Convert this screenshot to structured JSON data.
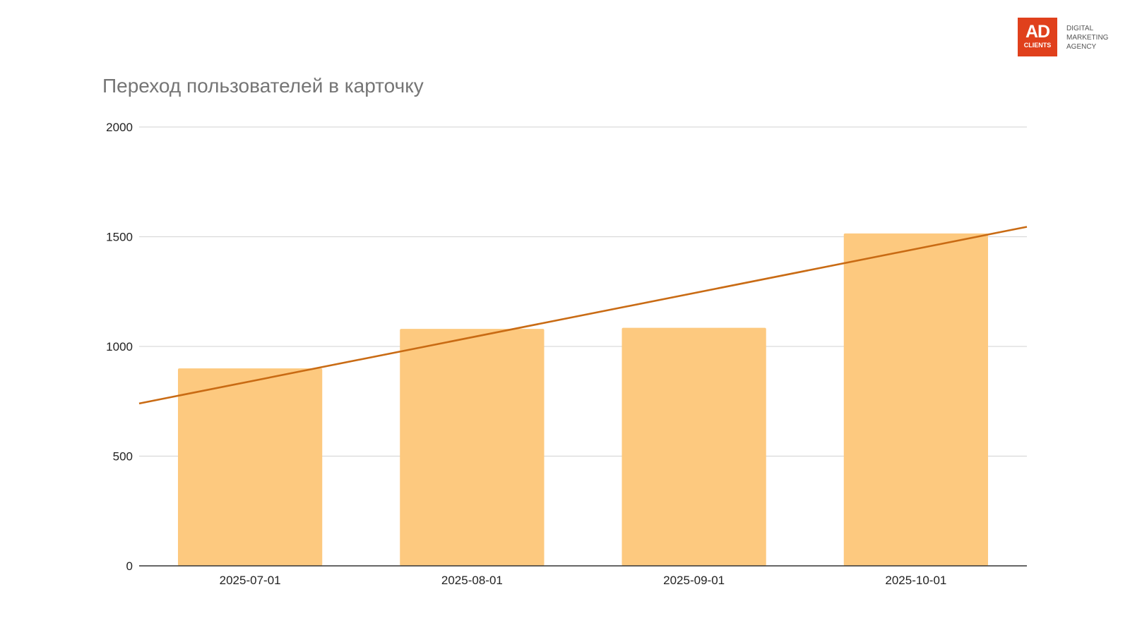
{
  "branding": {
    "logo_main": "AD",
    "logo_sub": "CLIENTS",
    "tagline": [
      "DIGITAL",
      "MARKETING",
      "AGENCY"
    ]
  },
  "colors": {
    "bar": "#fdc97f",
    "trendline": "#c96b14",
    "grid": "#d9d9d9",
    "axis": "#333333",
    "logo_bg": "#e0401c"
  },
  "chart_data": {
    "type": "bar",
    "title": "Переход пользователей в карточку",
    "categories": [
      "2025-07-01",
      "2025-08-01",
      "2025-09-01",
      "2025-10-01"
    ],
    "values": [
      900,
      1080,
      1085,
      1515
    ],
    "ylim": [
      0,
      2000
    ],
    "yticks": [
      0,
      500,
      1000,
      1500,
      2000
    ],
    "grid": true,
    "legend": "none",
    "trendline": {
      "type": "linear",
      "start_value": 740,
      "end_value": 1545
    }
  }
}
